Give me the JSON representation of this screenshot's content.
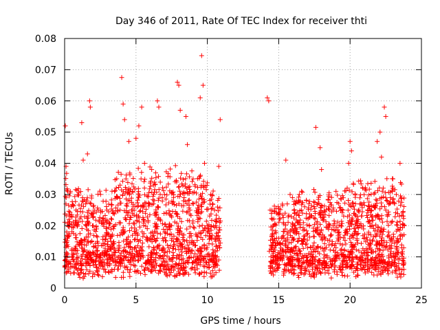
{
  "chart_data": {
    "type": "scatter",
    "title": "Day 346 of 2011, Rate Of TEC Index for receiver thti",
    "xlabel": "GPS time / hours",
    "ylabel": "ROTI / TECUs",
    "xlim": [
      0,
      25
    ],
    "ylim": [
      0,
      0.08
    ],
    "x_ticks": [
      0,
      5,
      10,
      15,
      20,
      25
    ],
    "x_tick_labels": [
      "0",
      "5",
      "10",
      "15",
      "20",
      "25"
    ],
    "y_ticks": [
      0,
      0.01,
      0.02,
      0.03,
      0.04,
      0.05,
      0.06,
      0.07,
      0.08
    ],
    "y_tick_labels": [
      "0",
      "0.01",
      "0.02",
      "0.03",
      "0.04",
      "0.05",
      "0.06",
      "0.07",
      "0.08"
    ],
    "grid": true,
    "marker": "+",
    "color": "#ff0000",
    "data_gap_hours": [
      11.0,
      14.2
    ],
    "series": [
      {
        "name": "ROTI",
        "points": [
          [
            0.05,
            0.052
          ],
          [
            0.1,
            0.039
          ],
          [
            0.15,
            0.018
          ],
          [
            0.2,
            0.016
          ],
          [
            0.3,
            0.022
          ],
          [
            0.4,
            0.031
          ],
          [
            0.5,
            0.012
          ],
          [
            0.6,
            0.009
          ],
          [
            0.8,
            0.025
          ],
          [
            1.0,
            0.014
          ],
          [
            1.2,
            0.053
          ],
          [
            1.3,
            0.041
          ],
          [
            1.5,
            0.02
          ],
          [
            1.6,
            0.043
          ],
          [
            1.75,
            0.06
          ],
          [
            1.8,
            0.058
          ],
          [
            2.0,
            0.02
          ],
          [
            2.3,
            0.012
          ],
          [
            2.6,
            0.008
          ],
          [
            3.0,
            0.014
          ],
          [
            3.3,
            0.022
          ],
          [
            3.5,
            0.031
          ],
          [
            3.8,
            0.012
          ],
          [
            4.0,
            0.0675
          ],
          [
            4.1,
            0.059
          ],
          [
            4.2,
            0.054
          ],
          [
            4.3,
            0.035
          ],
          [
            4.5,
            0.047
          ],
          [
            4.7,
            0.025
          ],
          [
            5.0,
            0.048
          ],
          [
            5.2,
            0.052
          ],
          [
            5.4,
            0.058
          ],
          [
            5.6,
            0.04
          ],
          [
            5.8,
            0.016
          ],
          [
            6.1,
            0.038
          ],
          [
            6.5,
            0.06
          ],
          [
            6.6,
            0.058
          ],
          [
            6.8,
            0.012
          ],
          [
            7.0,
            0.03
          ],
          [
            7.5,
            0.02
          ],
          [
            7.9,
            0.066
          ],
          [
            8.0,
            0.065
          ],
          [
            8.1,
            0.057
          ],
          [
            8.5,
            0.055
          ],
          [
            8.6,
            0.046
          ],
          [
            9.0,
            0.035
          ],
          [
            9.5,
            0.061
          ],
          [
            9.6,
            0.0745
          ],
          [
            9.7,
            0.065
          ],
          [
            9.8,
            0.04
          ],
          [
            10.0,
            0.02
          ],
          [
            10.5,
            0.025
          ],
          [
            10.8,
            0.039
          ],
          [
            10.9,
            0.054
          ],
          [
            14.2,
            0.061
          ],
          [
            14.3,
            0.06
          ],
          [
            14.4,
            0.025
          ],
          [
            15.0,
            0.016
          ],
          [
            15.5,
            0.041
          ],
          [
            15.8,
            0.03
          ],
          [
            16.2,
            0.012
          ],
          [
            16.6,
            0.025
          ],
          [
            17.0,
            0.01
          ],
          [
            17.6,
            0.0515
          ],
          [
            17.9,
            0.045
          ],
          [
            18.0,
            0.038
          ],
          [
            18.5,
            0.02
          ],
          [
            19.0,
            0.01
          ],
          [
            19.5,
            0.025
          ],
          [
            19.9,
            0.04
          ],
          [
            20.0,
            0.047
          ],
          [
            20.1,
            0.044
          ],
          [
            20.5,
            0.02
          ],
          [
            21.0,
            0.012
          ],
          [
            21.5,
            0.025
          ],
          [
            21.9,
            0.047
          ],
          [
            22.1,
            0.05
          ],
          [
            22.2,
            0.042
          ],
          [
            22.4,
            0.058
          ],
          [
            22.5,
            0.055
          ],
          [
            23.0,
            0.035
          ],
          [
            23.5,
            0.04
          ],
          [
            23.8,
            0.02
          ]
        ]
      }
    ]
  }
}
